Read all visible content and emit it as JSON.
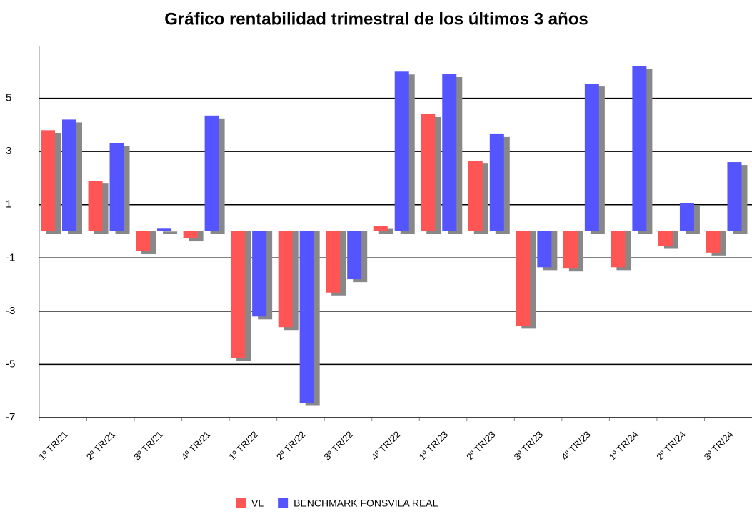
{
  "chart_data": {
    "type": "bar",
    "title": "Gráfico rentabilidad trimestral de los últimos 3 años",
    "categories": [
      "1º TR/21",
      "2º TR/21",
      "3º TR/21",
      "4º TR/21",
      "1º TR/22",
      "2º TR/22",
      "3º TR/22",
      "4º TR/22",
      "1º TR/23",
      "2º TR/23",
      "3º TR/23",
      "4º TR/23",
      "1º TR/24",
      "2º TR/24",
      "3º TR/24"
    ],
    "series": [
      {
        "name": "VL",
        "color": "#ff5555",
        "values": [
          3.8,
          1.9,
          -0.75,
          -0.27,
          -4.75,
          -3.6,
          -2.3,
          0.2,
          4.4,
          2.65,
          -3.55,
          -1.4,
          -1.35,
          -0.55,
          -0.8
        ]
      },
      {
        "name": "BENCHMARK FONSVILA REAL",
        "color": "#5555ff",
        "values": [
          4.2,
          3.3,
          0.1,
          4.35,
          -3.2,
          -6.45,
          -1.8,
          6.0,
          5.9,
          3.65,
          -1.35,
          5.55,
          6.2,
          1.05,
          2.6
        ]
      }
    ],
    "ylim": [
      -7,
      7
    ],
    "yticks": [
      -7,
      -5,
      -3,
      -1,
      1,
      3,
      5
    ],
    "grid": true,
    "shadow_color": "#888888"
  }
}
